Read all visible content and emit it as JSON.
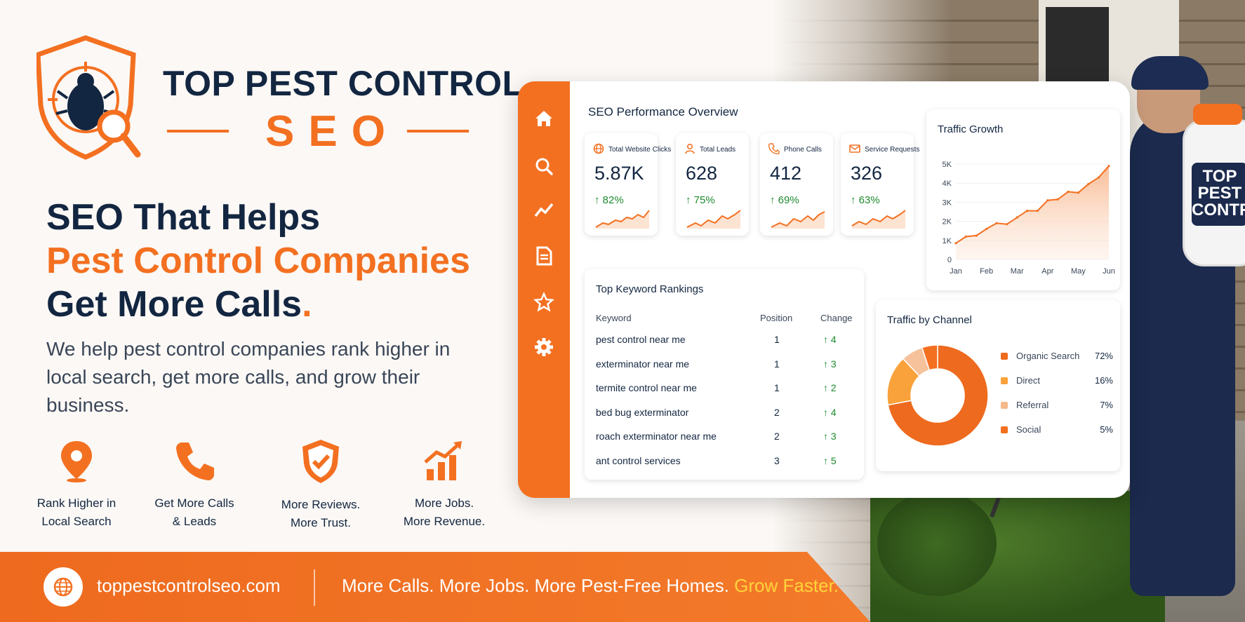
{
  "brand": {
    "line1": "TOP PEST CONTROL",
    "line2": "SEO"
  },
  "headline": {
    "line1": "SEO That Helps",
    "line2": "Pest Control Companies",
    "line3": "Get More Calls",
    "dot": "."
  },
  "lede": "We help pest control companies rank higher in local search, get more calls, and grow their business.",
  "features": [
    {
      "icon": "map-pin-icon",
      "line1": "Rank Higher in",
      "line2": "Local Search"
    },
    {
      "icon": "phone-icon",
      "line1": "Get More Calls",
      "line2": "& Leads"
    },
    {
      "icon": "shield-check-icon",
      "line1": "More Reviews.",
      "line2": "More Trust."
    },
    {
      "icon": "bar-growth-icon",
      "line1": "More Jobs.",
      "line2": "More Revenue."
    }
  ],
  "footer": {
    "site": "toppestcontrolseo.com",
    "tagline": "More Calls. More Jobs. More Pest-Free Homes.",
    "highlight": "Grow Faster."
  },
  "tank_text": "TOP PEST CONTRO",
  "dashboard": {
    "title": "SEO Performance Overview",
    "sidebar": [
      "home-icon",
      "search-icon",
      "trend-icon",
      "document-icon",
      "star-icon",
      "gear-icon"
    ],
    "kpis": [
      {
        "label": "Total Website Clicks",
        "value": "5.87K",
        "change": "↑ 82%",
        "icon": "globe-icon"
      },
      {
        "label": "Total Leads",
        "value": "628",
        "change": "↑ 75%",
        "icon": "user-icon"
      },
      {
        "label": "Phone Calls",
        "value": "412",
        "change": "↑ 69%",
        "icon": "phone-icon"
      },
      {
        "label": "Service Requests",
        "value": "326",
        "change": "↑ 63%",
        "icon": "mail-icon"
      }
    ],
    "keywords": {
      "title": "Top Keyword Rankings",
      "headers": {
        "keyword": "Keyword",
        "position": "Position",
        "change": "Change"
      },
      "rows": [
        {
          "keyword": "pest control near me",
          "position": "1",
          "change": "↑ 4"
        },
        {
          "keyword": "exterminator near me",
          "position": "1",
          "change": "↑ 3"
        },
        {
          "keyword": "termite control near me",
          "position": "1",
          "change": "↑ 2"
        },
        {
          "keyword": "bed bug exterminator",
          "position": "2",
          "change": "↑ 4"
        },
        {
          "keyword": "roach exterminator near me",
          "position": "2",
          "change": "↑ 3"
        },
        {
          "keyword": "ant control services",
          "position": "3",
          "change": "↑ 5"
        }
      ]
    },
    "traffic_channel": {
      "title": "Traffic by Channel",
      "items": [
        {
          "name": "Organic Search",
          "pct": "72%",
          "color": "#ee6a1e"
        },
        {
          "name": "Direct",
          "pct": "16%",
          "color": "#f9a13a"
        },
        {
          "name": "Referral",
          "pct": "7%",
          "color": "#f6b98a"
        },
        {
          "name": "Social",
          "pct": "5%",
          "color": "#f37021"
        }
      ]
    }
  },
  "chart_data": [
    {
      "type": "area",
      "title": "Traffic Growth",
      "categories": [
        "Jan",
        "Feb",
        "Mar",
        "Apr",
        "May",
        "Jun"
      ],
      "y_ticks": [
        "0",
        "1K",
        "2K",
        "3K",
        "4K",
        "5K"
      ],
      "ylim": [
        0,
        5000
      ],
      "x": [
        0,
        0.33,
        0.67,
        1,
        1.33,
        1.67,
        2,
        2.33,
        2.67,
        3,
        3.33,
        3.67,
        4,
        4.33,
        4.67,
        5
      ],
      "values": [
        850,
        1200,
        1250,
        1600,
        1900,
        1850,
        2200,
        2550,
        2550,
        3100,
        3150,
        3550,
        3500,
        3950,
        4300,
        4900
      ]
    },
    {
      "type": "pie",
      "title": "Traffic by Channel",
      "categories": [
        "Organic Search",
        "Direct",
        "Referral",
        "Social"
      ],
      "values": [
        72,
        16,
        7,
        5
      ],
      "colors": [
        "#ee6a1e",
        "#f9a13a",
        "#f6c29c",
        "#f37021"
      ]
    }
  ]
}
